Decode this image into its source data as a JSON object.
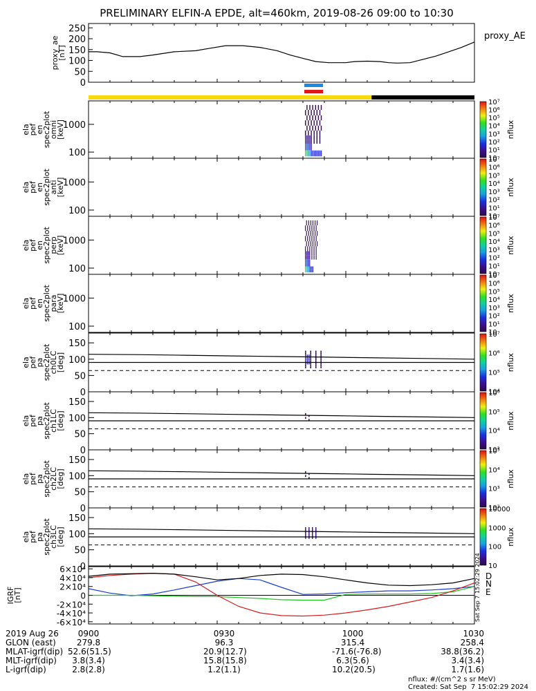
{
  "title": "PRELIMINARY ELFIN-A EPDE, alt=460km, 2019-08-26 09:00 to 10:30",
  "time_axis": {
    "date": "2019 Aug 26",
    "start": "09:00",
    "end": "10:30",
    "ticks": [
      {
        "t": "0900",
        "glon": "279.8",
        "mlat": "52.6(51.5)",
        "mlt": "3.8(3.4)",
        "l": "2.8(2.8)"
      },
      {
        "t": "0930",
        "glon": "96.3",
        "mlat": "20.9(12.7)",
        "mlt": "15.8(15.8)",
        "l": "1.2(1.1)"
      },
      {
        "t": "1000",
        "glon": "315.4",
        "mlat": "-71.6(-76.8)",
        "mlt": "6.3(5.6)",
        "l": "10.2(20.5)"
      },
      {
        "t": "1030",
        "glon": "258.4",
        "mlat": "38.8(36.2)",
        "mlt": "3.4(3.4)",
        "l": "1.7(1.6)"
      }
    ],
    "row_labels": {
      "glon": "GLON (east)",
      "mlat": "MLAT-igrf(dip)",
      "mlt": "MLT-igrf(dip)",
      "l": "L-igrf(dip)"
    }
  },
  "footer": {
    "units": "nflux: #/(cm^2 s sr MeV)",
    "created": "Created: Sat Sep  7 15:02:29 2024",
    "side_stamp": "Sat Sep  7 15:02:29 2024"
  },
  "colors": {
    "sunlight": "#f5d90a",
    "shadow": "#000000",
    "bar_blue": "#1f8ae0",
    "bar_red": "#e01515",
    "bx": "#d61a1a",
    "by": "#1a3ccf",
    "bz": "#1fc41f",
    "btot": "#000000"
  },
  "chart_data": [
    {
      "type": "line",
      "name": "proxy_ae",
      "ylabel": "proxy_ae\n[nT]",
      "legend": "proxy_AE",
      "ylim": [
        0,
        270
      ],
      "yticks": [
        0,
        50,
        100,
        150,
        200,
        250
      ],
      "x_minutes": [
        0,
        2,
        5,
        8,
        12,
        15,
        20,
        25,
        28,
        32,
        36,
        40,
        44,
        47,
        50,
        53,
        56,
        60,
        62,
        65,
        68,
        70,
        72,
        75,
        78,
        81,
        84,
        87,
        90
      ],
      "values": [
        140,
        140,
        135,
        118,
        118,
        125,
        140,
        145,
        155,
        168,
        168,
        160,
        145,
        125,
        110,
        95,
        90,
        90,
        95,
        97,
        95,
        90,
        88,
        90,
        105,
        120,
        140,
        160,
        185
      ]
    },
    {
      "type": "heatmap",
      "name": "omni",
      "ylabel": "ela\npef\nen\nspec2plot\nomni\n[keV]",
      "yscale": "log",
      "ylim": [
        60,
        7000
      ],
      "yticks": [
        100,
        1000
      ],
      "colorbar": {
        "label": "nflux",
        "scale": "log",
        "ticks": [
          "10",
          "10¹",
          "10²",
          "10³",
          "10⁴",
          "10⁵",
          "10⁶",
          "10⁷"
        ]
      },
      "data_interval_minutes": [
        50.5,
        54.5
      ]
    },
    {
      "type": "heatmap",
      "name": "anti",
      "ylabel": "ela\npef\nen\nspec2plot\nanti\n[keV]",
      "yscale": "log",
      "ylim": [
        60,
        7000
      ],
      "yticks": [
        100,
        1000
      ],
      "colorbar": {
        "label": "nflux",
        "scale": "log",
        "ticks": [
          "10",
          "10¹",
          "10²",
          "10³",
          "10⁴",
          "10⁵",
          "10⁶",
          "10⁷"
        ]
      },
      "data_interval_minutes": []
    },
    {
      "type": "heatmap",
      "name": "perp",
      "ylabel": "ela\npef\nen\nspec2plot\nperp\n[keV]",
      "yscale": "log",
      "ylim": [
        60,
        7000
      ],
      "yticks": [
        100,
        1000
      ],
      "colorbar": {
        "label": "nflux",
        "scale": "log",
        "ticks": [
          "10",
          "10¹",
          "10²",
          "10³",
          "10⁴",
          "10⁵",
          "10⁶",
          "10⁷"
        ]
      },
      "data_interval_minutes": [
        50.5,
        53.5
      ]
    },
    {
      "type": "heatmap",
      "name": "para",
      "ylabel": "ela\npef\nen\nspec2plot\npara\n[keV]",
      "yscale": "log",
      "ylim": [
        60,
        7000
      ],
      "yticks": [
        100,
        1000
      ],
      "colorbar": {
        "label": "nflux",
        "scale": "log",
        "ticks": [
          "10",
          "10¹",
          "10²",
          "10³",
          "10⁴",
          "10⁵",
          "10⁶",
          "10⁷"
        ]
      },
      "data_interval_minutes": []
    },
    {
      "type": "heatmap",
      "name": "ch0LC",
      "ylabel": "ela\npef\npa\nspec2plot\nch0LC\n[deg]",
      "ylim": [
        0,
        180
      ],
      "yticks": [
        0,
        50,
        100,
        150
      ],
      "colorbar": {
        "label": "nflux",
        "scale": "log",
        "ticks": [
          "10⁴",
          "10⁵",
          "10⁶",
          "10⁷"
        ]
      },
      "lc_upper": [
        115,
        114,
        112,
        110,
        108,
        106,
        104,
        102,
        100
      ],
      "lc_lower": [
        90,
        90,
        90,
        90,
        90,
        90,
        90,
        90,
        90
      ],
      "lc_dashed": 65
    },
    {
      "type": "heatmap",
      "name": "ch1LC",
      "ylabel": "ela\npef\npa\nspec2plot\nch1LC\n[deg]",
      "ylim": [
        0,
        180
      ],
      "yticks": [
        0,
        50,
        100,
        150
      ],
      "colorbar": {
        "label": "nflux",
        "scale": "log",
        "ticks": [
          "10³",
          "10⁴",
          "10⁵",
          "10⁶"
        ]
      },
      "lc_upper": [
        115,
        114,
        112,
        110,
        108,
        106,
        104,
        102,
        100
      ],
      "lc_lower": [
        90,
        90,
        90,
        90,
        90,
        90,
        90,
        90,
        90
      ],
      "lc_dashed": 65
    },
    {
      "type": "heatmap",
      "name": "ch2LC",
      "ylabel": "ela\npef\npa\nspec2plot\nch2LC\n[deg]",
      "ylim": [
        0,
        180
      ],
      "yticks": [
        0,
        50,
        100,
        150
      ],
      "colorbar": {
        "label": "nflux",
        "scale": "log",
        "ticks": [
          "10²",
          "10³",
          "10⁴",
          "10⁵"
        ]
      },
      "lc_upper": [
        115,
        114,
        112,
        110,
        108,
        106,
        104,
        102,
        100
      ],
      "lc_lower": [
        90,
        90,
        90,
        90,
        90,
        90,
        90,
        90,
        90
      ],
      "lc_dashed": 65
    },
    {
      "type": "heatmap",
      "name": "ch3LC",
      "ylabel": "ela\npef\npa\nspec2plot\nch3LC\n[deg]",
      "ylim": [
        0,
        180
      ],
      "yticks": [
        0,
        50,
        100,
        150
      ],
      "colorbar": {
        "label": "nflux",
        "scale": "linear",
        "ticks": [
          "10",
          "100",
          "1000",
          "10000"
        ]
      },
      "lc_upper": [
        115,
        114,
        112,
        110,
        108,
        106,
        104,
        102,
        100
      ],
      "lc_lower": [
        90,
        90,
        90,
        90,
        90,
        90,
        90,
        90,
        90
      ],
      "lc_dashed": 65
    },
    {
      "type": "line",
      "name": "igrf",
      "ylabel": "IGRF\n[nT]",
      "ylim": [
        -65000,
        65000
      ],
      "yticks": [
        "-6×10⁴",
        "-4×10⁴",
        "-2×10⁴",
        "0",
        "2×10⁴",
        "4×10⁴",
        "6×10⁴"
      ],
      "ytick_values": [
        -60000,
        -40000,
        -20000,
        0,
        20000,
        40000,
        60000
      ],
      "x_minutes": [
        0,
        5,
        10,
        15,
        20,
        25,
        30,
        35,
        40,
        45,
        50,
        55,
        60,
        65,
        70,
        75,
        80,
        85,
        90
      ],
      "series": [
        {
          "name": "N",
          "key": "by",
          "values": [
            15000,
            5000,
            -1000,
            3000,
            12000,
            22000,
            32000,
            38000,
            35000,
            18000,
            2000,
            3000,
            6000,
            8000,
            10000,
            10000,
            12000,
            15000,
            20000
          ]
        },
        {
          "name": "E",
          "key": "bz",
          "values": [
            0,
            0,
            0,
            -1000,
            -2000,
            -3000,
            -3000,
            -5000,
            -7000,
            -10000,
            -11000,
            -11000,
            2000,
            3000,
            3000,
            3000,
            4000,
            8000,
            20000
          ]
        },
        {
          "name": "D",
          "key": "bx",
          "values": [
            40000,
            45000,
            48000,
            50000,
            48000,
            30000,
            0,
            -25000,
            -40000,
            -46000,
            -47000,
            -45000,
            -40000,
            -33000,
            -25000,
            -15000,
            -5000,
            10000,
            28000
          ]
        },
        {
          "name": "",
          "key": "btot",
          "values": [
            43000,
            48000,
            49000,
            50000,
            48000,
            42000,
            35000,
            38000,
            45000,
            48000,
            47000,
            42000,
            35000,
            28000,
            23000,
            22000,
            24000,
            28000,
            38000
          ]
        }
      ]
    }
  ]
}
